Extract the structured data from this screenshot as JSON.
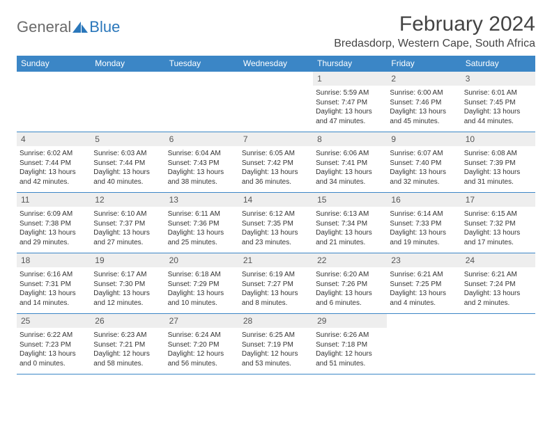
{
  "logo": {
    "text1": "General",
    "text2": "Blue"
  },
  "title": "February 2024",
  "location": "Bredasdorp, Western Cape, South Africa",
  "colors": {
    "header_bg": "#3b86c6",
    "header_fg": "#ffffff",
    "daynum_bg": "#eeeeee",
    "rule": "#3b86c6",
    "logo_gray": "#6a6a6a",
    "logo_blue": "#2a77bb"
  },
  "day_names": [
    "Sunday",
    "Monday",
    "Tuesday",
    "Wednesday",
    "Thursday",
    "Friday",
    "Saturday"
  ],
  "weeks": [
    [
      null,
      null,
      null,
      null,
      {
        "n": "1",
        "sr": "Sunrise: 5:59 AM",
        "ss": "Sunset: 7:47 PM",
        "dl1": "Daylight: 13 hours",
        "dl2": "and 47 minutes."
      },
      {
        "n": "2",
        "sr": "Sunrise: 6:00 AM",
        "ss": "Sunset: 7:46 PM",
        "dl1": "Daylight: 13 hours",
        "dl2": "and 45 minutes."
      },
      {
        "n": "3",
        "sr": "Sunrise: 6:01 AM",
        "ss": "Sunset: 7:45 PM",
        "dl1": "Daylight: 13 hours",
        "dl2": "and 44 minutes."
      }
    ],
    [
      {
        "n": "4",
        "sr": "Sunrise: 6:02 AM",
        "ss": "Sunset: 7:44 PM",
        "dl1": "Daylight: 13 hours",
        "dl2": "and 42 minutes."
      },
      {
        "n": "5",
        "sr": "Sunrise: 6:03 AM",
        "ss": "Sunset: 7:44 PM",
        "dl1": "Daylight: 13 hours",
        "dl2": "and 40 minutes."
      },
      {
        "n": "6",
        "sr": "Sunrise: 6:04 AM",
        "ss": "Sunset: 7:43 PM",
        "dl1": "Daylight: 13 hours",
        "dl2": "and 38 minutes."
      },
      {
        "n": "7",
        "sr": "Sunrise: 6:05 AM",
        "ss": "Sunset: 7:42 PM",
        "dl1": "Daylight: 13 hours",
        "dl2": "and 36 minutes."
      },
      {
        "n": "8",
        "sr": "Sunrise: 6:06 AM",
        "ss": "Sunset: 7:41 PM",
        "dl1": "Daylight: 13 hours",
        "dl2": "and 34 minutes."
      },
      {
        "n": "9",
        "sr": "Sunrise: 6:07 AM",
        "ss": "Sunset: 7:40 PM",
        "dl1": "Daylight: 13 hours",
        "dl2": "and 32 minutes."
      },
      {
        "n": "10",
        "sr": "Sunrise: 6:08 AM",
        "ss": "Sunset: 7:39 PM",
        "dl1": "Daylight: 13 hours",
        "dl2": "and 31 minutes."
      }
    ],
    [
      {
        "n": "11",
        "sr": "Sunrise: 6:09 AM",
        "ss": "Sunset: 7:38 PM",
        "dl1": "Daylight: 13 hours",
        "dl2": "and 29 minutes."
      },
      {
        "n": "12",
        "sr": "Sunrise: 6:10 AM",
        "ss": "Sunset: 7:37 PM",
        "dl1": "Daylight: 13 hours",
        "dl2": "and 27 minutes."
      },
      {
        "n": "13",
        "sr": "Sunrise: 6:11 AM",
        "ss": "Sunset: 7:36 PM",
        "dl1": "Daylight: 13 hours",
        "dl2": "and 25 minutes."
      },
      {
        "n": "14",
        "sr": "Sunrise: 6:12 AM",
        "ss": "Sunset: 7:35 PM",
        "dl1": "Daylight: 13 hours",
        "dl2": "and 23 minutes."
      },
      {
        "n": "15",
        "sr": "Sunrise: 6:13 AM",
        "ss": "Sunset: 7:34 PM",
        "dl1": "Daylight: 13 hours",
        "dl2": "and 21 minutes."
      },
      {
        "n": "16",
        "sr": "Sunrise: 6:14 AM",
        "ss": "Sunset: 7:33 PM",
        "dl1": "Daylight: 13 hours",
        "dl2": "and 19 minutes."
      },
      {
        "n": "17",
        "sr": "Sunrise: 6:15 AM",
        "ss": "Sunset: 7:32 PM",
        "dl1": "Daylight: 13 hours",
        "dl2": "and 17 minutes."
      }
    ],
    [
      {
        "n": "18",
        "sr": "Sunrise: 6:16 AM",
        "ss": "Sunset: 7:31 PM",
        "dl1": "Daylight: 13 hours",
        "dl2": "and 14 minutes."
      },
      {
        "n": "19",
        "sr": "Sunrise: 6:17 AM",
        "ss": "Sunset: 7:30 PM",
        "dl1": "Daylight: 13 hours",
        "dl2": "and 12 minutes."
      },
      {
        "n": "20",
        "sr": "Sunrise: 6:18 AM",
        "ss": "Sunset: 7:29 PM",
        "dl1": "Daylight: 13 hours",
        "dl2": "and 10 minutes."
      },
      {
        "n": "21",
        "sr": "Sunrise: 6:19 AM",
        "ss": "Sunset: 7:27 PM",
        "dl1": "Daylight: 13 hours",
        "dl2": "and 8 minutes."
      },
      {
        "n": "22",
        "sr": "Sunrise: 6:20 AM",
        "ss": "Sunset: 7:26 PM",
        "dl1": "Daylight: 13 hours",
        "dl2": "and 6 minutes."
      },
      {
        "n": "23",
        "sr": "Sunrise: 6:21 AM",
        "ss": "Sunset: 7:25 PM",
        "dl1": "Daylight: 13 hours",
        "dl2": "and 4 minutes."
      },
      {
        "n": "24",
        "sr": "Sunrise: 6:21 AM",
        "ss": "Sunset: 7:24 PM",
        "dl1": "Daylight: 13 hours",
        "dl2": "and 2 minutes."
      }
    ],
    [
      {
        "n": "25",
        "sr": "Sunrise: 6:22 AM",
        "ss": "Sunset: 7:23 PM",
        "dl1": "Daylight: 13 hours",
        "dl2": "and 0 minutes."
      },
      {
        "n": "26",
        "sr": "Sunrise: 6:23 AM",
        "ss": "Sunset: 7:21 PM",
        "dl1": "Daylight: 12 hours",
        "dl2": "and 58 minutes."
      },
      {
        "n": "27",
        "sr": "Sunrise: 6:24 AM",
        "ss": "Sunset: 7:20 PM",
        "dl1": "Daylight: 12 hours",
        "dl2": "and 56 minutes."
      },
      {
        "n": "28",
        "sr": "Sunrise: 6:25 AM",
        "ss": "Sunset: 7:19 PM",
        "dl1": "Daylight: 12 hours",
        "dl2": "and 53 minutes."
      },
      {
        "n": "29",
        "sr": "Sunrise: 6:26 AM",
        "ss": "Sunset: 7:18 PM",
        "dl1": "Daylight: 12 hours",
        "dl2": "and 51 minutes."
      },
      null,
      null
    ]
  ]
}
